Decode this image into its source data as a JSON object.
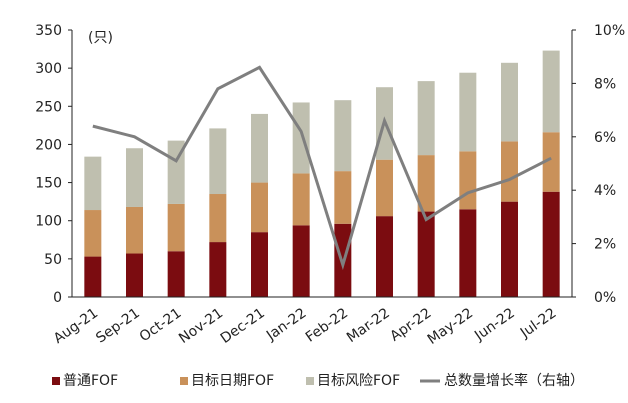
{
  "chart_data": {
    "type": "bar",
    "stacked": true,
    "categories": [
      "Aug-21",
      "Sep-21",
      "Oct-21",
      "Nov-21",
      "Dec-21",
      "Jan-22",
      "Feb-22",
      "Mar-22",
      "Apr-22",
      "May-22",
      "Jun-22",
      "Jul-22"
    ],
    "series": [
      {
        "name": "普通FOF",
        "type": "bar",
        "axis": "left",
        "color": "#7B0C10",
        "values": [
          53,
          57,
          60,
          72,
          85,
          94,
          96,
          106,
          112,
          115,
          125,
          138
        ]
      },
      {
        "name": "目标日期FOF",
        "type": "bar",
        "axis": "left",
        "color": "#C9915A",
        "values": [
          61,
          61,
          62,
          63,
          65,
          68,
          69,
          74,
          74,
          76,
          79,
          78
        ]
      },
      {
        "name": "目标风险FOF",
        "type": "bar",
        "axis": "left",
        "color": "#BFBFAF",
        "values": [
          70,
          77,
          83,
          86,
          90,
          93,
          93,
          95,
          97,
          103,
          103,
          107
        ]
      },
      {
        "name": "总数量增长率（右轴）",
        "type": "line",
        "axis": "right",
        "color": "#7F7F7F",
        "values": [
          6.4,
          6.0,
          5.1,
          7.8,
          8.6,
          6.2,
          1.2,
          6.6,
          2.9,
          3.9,
          4.4,
          5.2
        ]
      }
    ],
    "y_left": {
      "label": "(只)",
      "ylim": [
        0,
        350
      ],
      "ticks": [
        "0",
        "50",
        "100",
        "150",
        "200",
        "250",
        "300",
        "350"
      ]
    },
    "y_right": {
      "ylim": [
        0,
        10
      ],
      "ticks": [
        "0%",
        "2%",
        "4%",
        "6%",
        "8%",
        "10%"
      ]
    },
    "grid": false,
    "legend": "bottom"
  }
}
